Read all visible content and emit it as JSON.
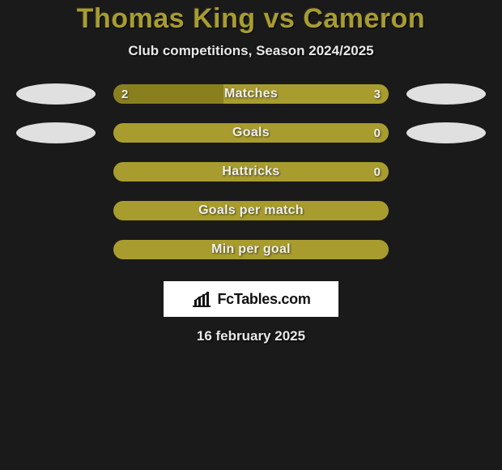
{
  "header": {
    "title": "Thomas King vs Cameron",
    "subtitle": "Club competitions, Season 2024/2025",
    "title_color": "#a89c2f"
  },
  "colors": {
    "background": "#1a1a1a",
    "bar_primary": "#a89c2f",
    "bar_secondary": "#8a7f1f",
    "pill": "#e0e0e0",
    "text": "#e8e8e8",
    "logo_bg": "#ffffff",
    "logo_text": "#111111"
  },
  "stats": [
    {
      "label": "Matches",
      "left_value": "2",
      "right_value": "3",
      "left_fill_pct": 40,
      "show_pills": true
    },
    {
      "label": "Goals",
      "left_value": "",
      "right_value": "0",
      "left_fill_pct": 0,
      "show_pills": true
    },
    {
      "label": "Hattricks",
      "left_value": "",
      "right_value": "0",
      "left_fill_pct": 0,
      "show_pills": false
    },
    {
      "label": "Goals per match",
      "left_value": "",
      "right_value": "",
      "left_fill_pct": 0,
      "show_pills": false
    },
    {
      "label": "Min per goal",
      "left_value": "",
      "right_value": "",
      "left_fill_pct": 0,
      "show_pills": false
    }
  ],
  "logo": {
    "text": "FcTables.com"
  },
  "footer": {
    "date": "16 february 2025"
  }
}
